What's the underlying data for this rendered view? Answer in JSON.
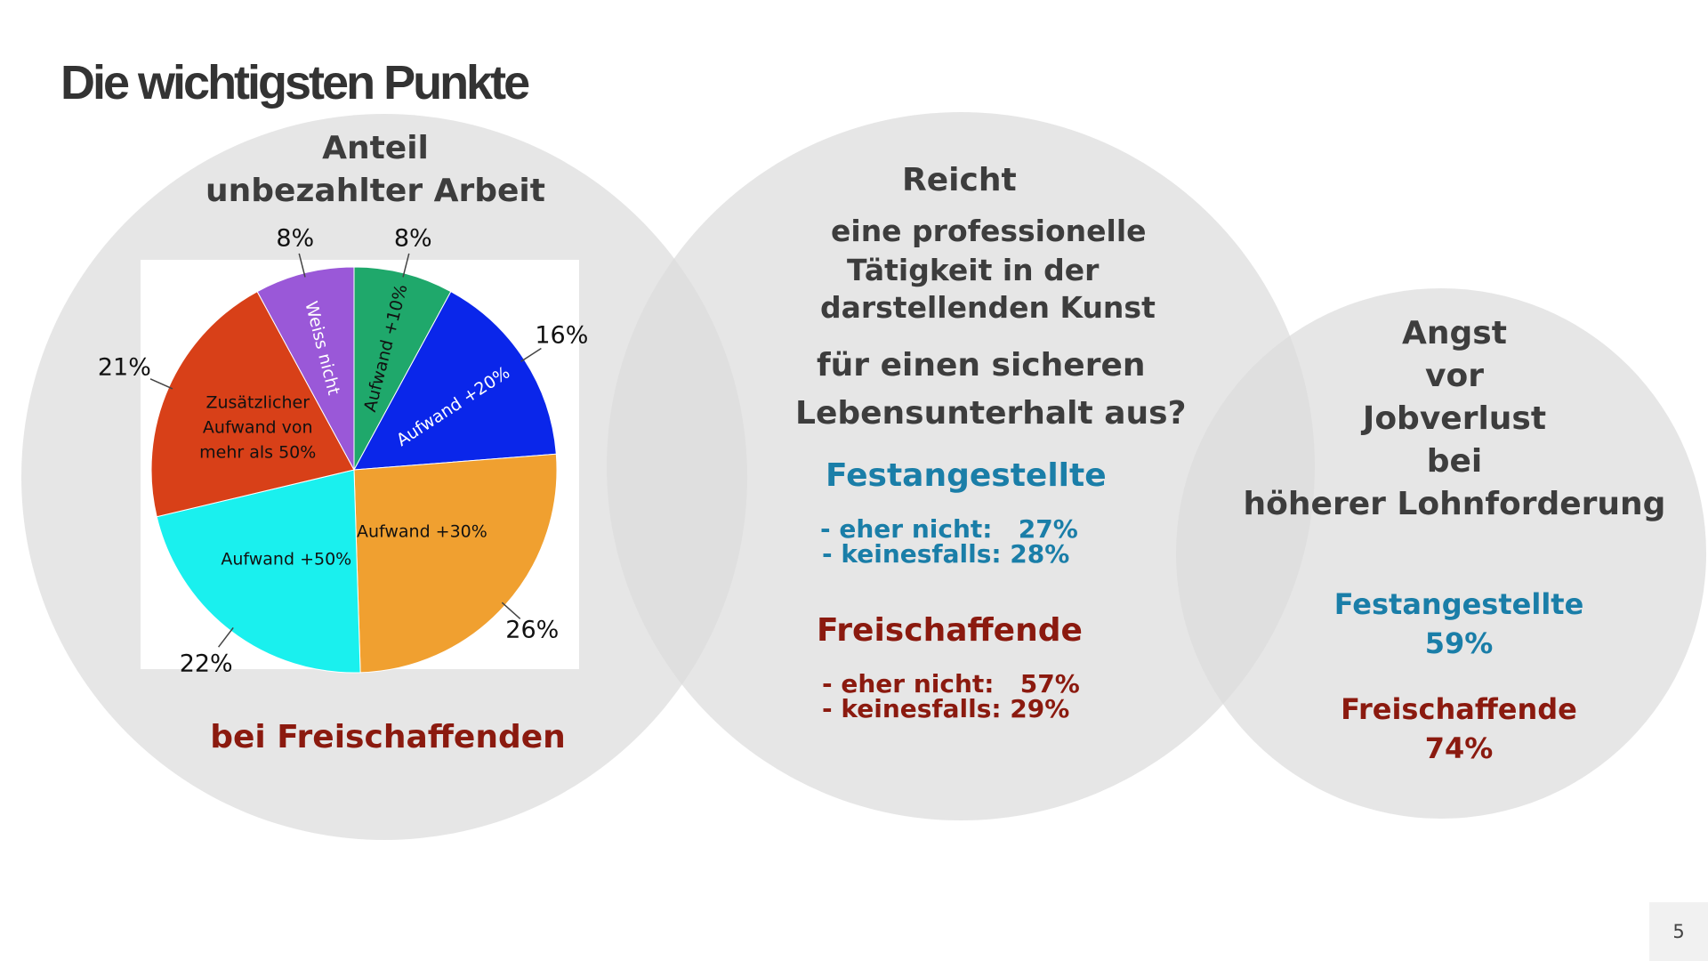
{
  "title": "Die wichtigsten Punkte",
  "page_number": "5",
  "circle1": {
    "heading_line1": "Anteil",
    "heading_line2": "unbezahlter Arbeit",
    "footer": "bei Freischaffenden"
  },
  "circle2": {
    "line1": "Reicht",
    "line2": "eine professionelle",
    "line3": "Tätigkeit in der",
    "line4": "darstellenden Kunst",
    "line5": "für einen sicheren",
    "line6": "Lebensunterhalt aus?",
    "group1_title": "Festangestellte",
    "group1_item1": "- eher nicht:   27%",
    "group1_item2": "- keinesfalls: 28%",
    "group2_title": "Freischaffende",
    "group2_item1": "- eher nicht:   57%",
    "group2_item2": "- keinesfalls: 29%"
  },
  "circle3": {
    "line1": "Angst",
    "line2": "vor",
    "line3": "Jobverlust",
    "line4": "bei",
    "line5": "höherer Lohnforderung",
    "group1_title": "Festangestellte",
    "group1_value": "59%",
    "group2_title": "Freischaffende",
    "group2_value": "74%"
  },
  "colors": {
    "blue_text": "#1a7ea8",
    "red_text": "#8b1a0f",
    "circle_fill": "#dcdcdc"
  },
  "chart_data": {
    "type": "pie",
    "slices": [
      {
        "label": "Aufwand +10%",
        "value": 8,
        "value_label": "8%",
        "color": "#1fa86b",
        "label_color": "#111111"
      },
      {
        "label": "Aufwand +20%",
        "value": 16,
        "value_label": "16%",
        "color": "#0a26ea",
        "label_color": "#ffffff"
      },
      {
        "label": "Aufwand +30%",
        "value": 26,
        "value_label": "26%",
        "color": "#f0a030",
        "label_color": "#111111"
      },
      {
        "label": "Aufwand +50%",
        "value": 22,
        "value_label": "22%",
        "color": "#1af0ee",
        "label_color": "#111111"
      },
      {
        "label": "Zusätzlicher Aufwand von mehr als 50%",
        "label_lines": [
          "Zusätzlicher",
          "Aufwand von",
          "mehr als 50%"
        ],
        "value": 21,
        "value_label": "21%",
        "color": "#d84018",
        "label_color": "#111111"
      },
      {
        "label": "Weiss nicht",
        "value": 8,
        "value_label": "8%",
        "color": "#9a58d8",
        "label_color": "#ffffff"
      }
    ]
  }
}
